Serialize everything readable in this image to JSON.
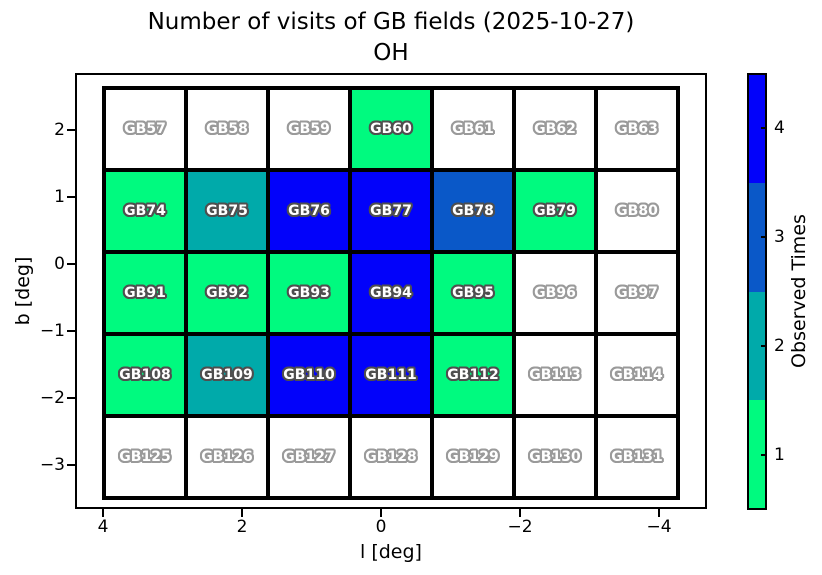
{
  "title": {
    "line1": "Number of visits of GB fields (2025-10-27)",
    "line2": "OH"
  },
  "axes": {
    "xlabel": "l [deg]",
    "ylabel": "b [deg]",
    "x_tick_labels": [
      "4",
      "2",
      "0",
      "−2",
      "−4"
    ],
    "y_tick_labels": [
      "2",
      "1",
      "0",
      "−1",
      "−2",
      "−3"
    ]
  },
  "colorbar": {
    "label": "Observed Times",
    "tick_labels_top_to_bottom": [
      "4",
      "3",
      "2",
      "1"
    ],
    "segment_colors_top_to_bottom": [
      "#0202fa",
      "#0a58c8",
      "#00aaaa",
      "#00fa7f"
    ]
  },
  "chart_data": {
    "type": "heatmap",
    "title": "Number of visits of GB fields (2025-10-27)",
    "subtitle": "OH",
    "xlabel": "l [deg]",
    "ylabel": "b [deg]",
    "x_ticks": [
      4,
      2,
      0,
      -2,
      -4
    ],
    "y_ticks": [
      2,
      1,
      0,
      -1,
      -2,
      -3
    ],
    "x_axis_reversed": true,
    "grid_shape": {
      "columns": 7,
      "rows": 5
    },
    "legend_label": "Observed Times",
    "value_range": [
      0,
      4
    ],
    "value_colors": {
      "0": "#ffffff",
      "1": "#00fa7f",
      "2": "#00aaaa",
      "3": "#0a58c8",
      "4": "#0202fa"
    },
    "label_outline": {
      "unvisited": "#9a9a9a",
      "visited": "#4f4f4f"
    },
    "rows": [
      [
        {
          "field": "GB57",
          "visits": 0
        },
        {
          "field": "GB58",
          "visits": 0
        },
        {
          "field": "GB59",
          "visits": 0
        },
        {
          "field": "GB60",
          "visits": 1
        },
        {
          "field": "GB61",
          "visits": 0
        },
        {
          "field": "GB62",
          "visits": 0
        },
        {
          "field": "GB63",
          "visits": 0
        }
      ],
      [
        {
          "field": "GB74",
          "visits": 1
        },
        {
          "field": "GB75",
          "visits": 2
        },
        {
          "field": "GB76",
          "visits": 4
        },
        {
          "field": "GB77",
          "visits": 4
        },
        {
          "field": "GB78",
          "visits": 3
        },
        {
          "field": "GB79",
          "visits": 1
        },
        {
          "field": "GB80",
          "visits": 0
        }
      ],
      [
        {
          "field": "GB91",
          "visits": 1
        },
        {
          "field": "GB92",
          "visits": 1
        },
        {
          "field": "GB93",
          "visits": 1
        },
        {
          "field": "GB94",
          "visits": 4
        },
        {
          "field": "GB95",
          "visits": 1
        },
        {
          "field": "GB96",
          "visits": 0
        },
        {
          "field": "GB97",
          "visits": 0
        }
      ],
      [
        {
          "field": "GB108",
          "visits": 1
        },
        {
          "field": "GB109",
          "visits": 2
        },
        {
          "field": "GB110",
          "visits": 4
        },
        {
          "field": "GB111",
          "visits": 4
        },
        {
          "field": "GB112",
          "visits": 1
        },
        {
          "field": "GB113",
          "visits": 0
        },
        {
          "field": "GB114",
          "visits": 0
        }
      ],
      [
        {
          "field": "GB125",
          "visits": 0
        },
        {
          "field": "GB126",
          "visits": 0
        },
        {
          "field": "GB127",
          "visits": 0
        },
        {
          "field": "GB128",
          "visits": 0
        },
        {
          "field": "GB129",
          "visits": 0
        },
        {
          "field": "GB130",
          "visits": 0
        },
        {
          "field": "GB131",
          "visits": 0
        }
      ]
    ]
  }
}
